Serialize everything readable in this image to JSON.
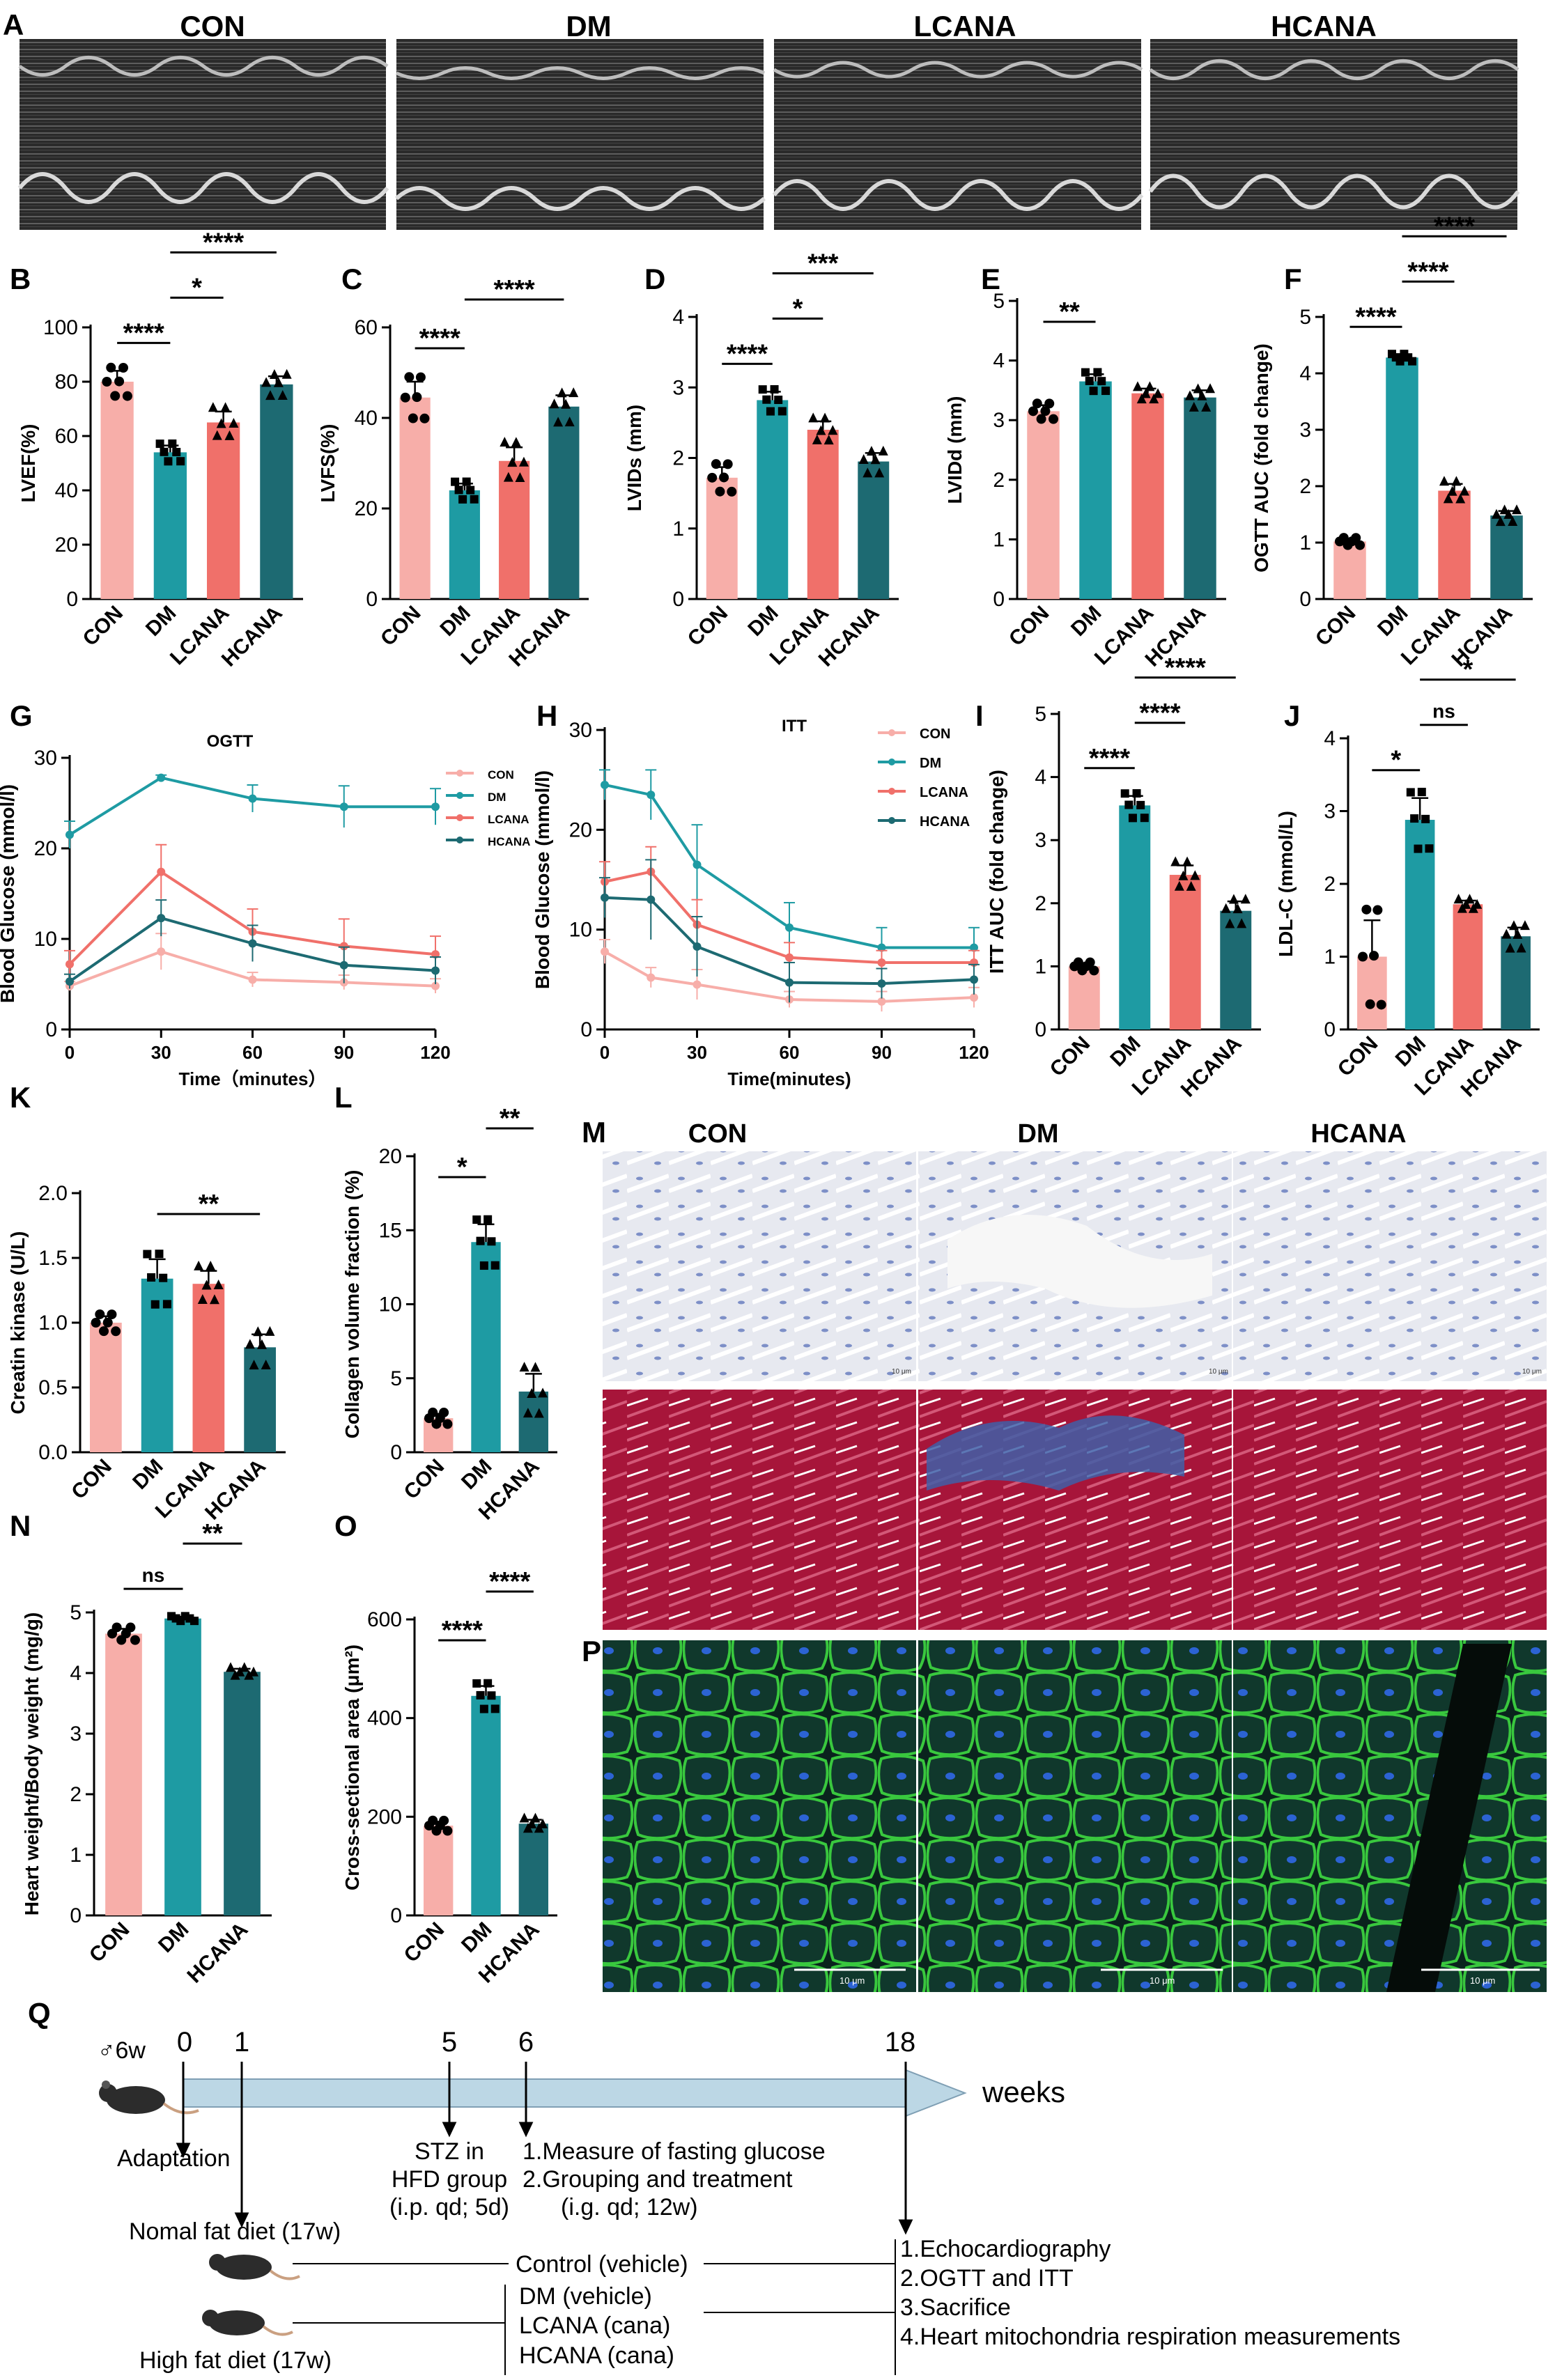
{
  "colors": {
    "con": "#f7aea9",
    "dm": "#1e9ba3",
    "lcana": "#f0706a",
    "hcana": "#1d6a72"
  },
  "panelA": {
    "letter": "A",
    "labels": [
      "CON",
      "DM",
      "LCANA",
      "HCANA"
    ]
  },
  "chart_data": [
    {
      "id": "B",
      "type": "bar",
      "categories": [
        "CON",
        "DM",
        "LCANA",
        "HCANA"
      ],
      "values": [
        80,
        54,
        65,
        79
      ],
      "errors": [
        4,
        2.5,
        4,
        3
      ],
      "ylabel": "LVEF(%)",
      "ylim": [
        0,
        100
      ],
      "yticks": [
        0,
        20,
        40,
        60,
        80,
        100
      ],
      "brackets": [
        {
          "from": 0,
          "to": 1,
          "label": "****"
        },
        {
          "from": 1,
          "to": 2,
          "label": "*"
        },
        {
          "from": 1,
          "to": 3,
          "label": "****"
        }
      ]
    },
    {
      "id": "C",
      "type": "bar",
      "categories": [
        "CON",
        "DM",
        "LCANA",
        "HCANA"
      ],
      "values": [
        44.5,
        24,
        30.5,
        42.5
      ],
      "errors": [
        3.5,
        1.5,
        3,
        2.5
      ],
      "ylabel": "LVFS(%)",
      "ylim": [
        0,
        60
      ],
      "yticks": [
        0,
        20,
        40,
        60
      ],
      "brackets": [
        {
          "from": 0,
          "to": 1,
          "label": "****"
        },
        {
          "from": 1,
          "to": 3,
          "label": "****"
        }
      ]
    },
    {
      "id": "D",
      "type": "bar",
      "categories": [
        "CON",
        "DM",
        "LCANA",
        "HCANA"
      ],
      "values": [
        1.72,
        2.82,
        2.4,
        1.95
      ],
      "errors": [
        0.15,
        0.12,
        0.12,
        0.12
      ],
      "ylabel": "LVIDs (mm)",
      "ylim": [
        0,
        4
      ],
      "yticks": [
        0,
        1,
        2,
        3,
        4
      ],
      "brackets": [
        {
          "from": 0,
          "to": 1,
          "label": "****"
        },
        {
          "from": 1,
          "to": 2,
          "label": "*"
        },
        {
          "from": 1,
          "to": 3,
          "label": "***"
        }
      ]
    },
    {
      "id": "E",
      "type": "bar",
      "categories": [
        "CON",
        "DM",
        "LCANA",
        "HCANA"
      ],
      "values": [
        3.15,
        3.65,
        3.45,
        3.38
      ],
      "errors": [
        0.1,
        0.12,
        0.08,
        0.12
      ],
      "ylabel": "LVIDd (mm)",
      "ylim": [
        0,
        5
      ],
      "yticks": [
        0,
        1,
        2,
        3,
        4,
        5
      ],
      "brackets": [
        {
          "from": 0,
          "to": 1,
          "label": "**"
        }
      ]
    },
    {
      "id": "F",
      "type": "bar",
      "categories": [
        "CON",
        "DM",
        "LCANA",
        "HCANA"
      ],
      "values": [
        1.02,
        4.28,
        1.92,
        1.48
      ],
      "errors": [
        0.05,
        0.05,
        0.12,
        0.08
      ],
      "ylabel": "OGTT AUC (fold change)",
      "ylim": [
        0,
        5
      ],
      "yticks": [
        0,
        1,
        2,
        3,
        4,
        5
      ],
      "brackets": [
        {
          "from": 0,
          "to": 1,
          "label": "****"
        },
        {
          "from": 1,
          "to": 2,
          "label": "****"
        },
        {
          "from": 1,
          "to": 3,
          "label": "****"
        }
      ]
    },
    {
      "id": "G",
      "type": "line",
      "title": "OGTT",
      "x": [
        0,
        30,
        60,
        90,
        120
      ],
      "xlabel": "Time（minutes）",
      "ylabel": "Blood Glucose (mmol/l)",
      "xlim": [
        0,
        120
      ],
      "ylim": [
        0,
        30
      ],
      "xticks": [
        0,
        30,
        60,
        90,
        120
      ],
      "yticks": [
        0,
        10,
        20,
        30
      ],
      "series": [
        {
          "name": "CON",
          "values": [
            4.8,
            8.6,
            5.5,
            5.2,
            4.8
          ],
          "errors": [
            0.5,
            2,
            0.8,
            0.8,
            0.8
          ]
        },
        {
          "name": "DM",
          "values": [
            21.5,
            27.8,
            25.5,
            24.6,
            24.6
          ],
          "errors": [
            1.5,
            0.3,
            1.5,
            2.3,
            2
          ]
        },
        {
          "name": "LCANA",
          "values": [
            7.2,
            17.4,
            10.8,
            9.2,
            8.3
          ],
          "errors": [
            1.5,
            3,
            2.5,
            3,
            2
          ]
        },
        {
          "name": "HCANA",
          "values": [
            5.3,
            12.3,
            9.5,
            7.1,
            6.5
          ],
          "errors": [
            0.8,
            2,
            2,
            2,
            1.5
          ]
        }
      ]
    },
    {
      "id": "H",
      "type": "line",
      "title": "ITT",
      "x": [
        0,
        15,
        30,
        60,
        90,
        120
      ],
      "xlabel": "Time(minutes)",
      "ylabel": "Blood Glucose (mmol/l)",
      "xlim": [
        0,
        120
      ],
      "ylim": [
        0,
        30
      ],
      "xticks": [
        0,
        30,
        60,
        90,
        120
      ],
      "yticks": [
        0,
        10,
        20,
        30
      ],
      "series": [
        {
          "name": "CON",
          "values": [
            7.8,
            5.2,
            4.5,
            3,
            2.8,
            3.2
          ],
          "errors": [
            1.2,
            1,
            1.5,
            0.8,
            1,
            1
          ]
        },
        {
          "name": "DM",
          "values": [
            24.5,
            23.5,
            16.5,
            10.2,
            8.2,
            8.2
          ],
          "errors": [
            1.5,
            2.5,
            4,
            2.5,
            2,
            2
          ]
        },
        {
          "name": "LCANA",
          "values": [
            14.8,
            15.8,
            10.5,
            7.2,
            6.7,
            6.7
          ],
          "errors": [
            2,
            2.5,
            2.5,
            1.5,
            1.2,
            1.2
          ]
        },
        {
          "name": "HCANA",
          "values": [
            13.2,
            13,
            8.3,
            4.7,
            4.6,
            5
          ],
          "errors": [
            2,
            4,
            3,
            2,
            1.5,
            1.5
          ]
        }
      ]
    },
    {
      "id": "I",
      "type": "bar",
      "categories": [
        "CON",
        "DM",
        "LCANA",
        "HCANA"
      ],
      "values": [
        1.0,
        3.55,
        2.45,
        1.88
      ],
      "errors": [
        0.05,
        0.15,
        0.15,
        0.15
      ],
      "ylabel": "ITT AUC (fold change)",
      "ylim": [
        0,
        5
      ],
      "yticks": [
        0,
        1,
        2,
        3,
        4,
        5
      ],
      "brackets": [
        {
          "from": 0,
          "to": 1,
          "label": "****"
        },
        {
          "from": 1,
          "to": 2,
          "label": "****"
        },
        {
          "from": 1,
          "to": 3,
          "label": "****"
        }
      ]
    },
    {
      "id": "J",
      "type": "bar",
      "categories": [
        "CON",
        "DM",
        "LCANA",
        "HCANA"
      ],
      "values": [
        1.0,
        2.88,
        1.72,
        1.28
      ],
      "errors": [
        0.5,
        0.3,
        0.05,
        0.12
      ],
      "ylabel": "LDL-C (mmol/L)",
      "ylim": [
        0,
        4
      ],
      "yticks": [
        0,
        1,
        2,
        3,
        4
      ],
      "brackets": [
        {
          "from": 0,
          "to": 1,
          "label": "*"
        },
        {
          "from": 1,
          "to": 2,
          "label": "ns"
        },
        {
          "from": 1,
          "to": 3,
          "label": "*"
        }
      ]
    },
    {
      "id": "K",
      "type": "bar",
      "categories": [
        "CON",
        "DM",
        "LCANA",
        "HCANA"
      ],
      "values": [
        1.0,
        1.34,
        1.3,
        0.81
      ],
      "errors": [
        0.05,
        0.15,
        0.1,
        0.1
      ],
      "ylabel": "Creatin kinase (U/L)",
      "ylim": [
        0,
        2
      ],
      "yticks": [
        0,
        0.5,
        1.0,
        1.5,
        2.0
      ],
      "brackets": [
        {
          "from": 1,
          "to": 3,
          "label": "**"
        }
      ]
    },
    {
      "id": "L",
      "type": "bar",
      "categories": [
        "CON",
        "DM",
        "HCANA"
      ],
      "values": [
        2.3,
        14.2,
        4.1
      ],
      "errors": [
        0.3,
        1.2,
        1.2
      ],
      "ylabel": "Collagen volume fraction (%)",
      "ylim": [
        0,
        20
      ],
      "yticks": [
        0,
        5,
        10,
        15,
        20
      ],
      "brackets": [
        {
          "from": 0,
          "to": 1,
          "label": "*"
        },
        {
          "from": 1,
          "to": 2,
          "label": "**"
        }
      ]
    },
    {
      "id": "N",
      "type": "bar",
      "categories": [
        "CON",
        "DM",
        "HCANA"
      ],
      "values": [
        4.65,
        4.9,
        4.02
      ],
      "errors": [
        0.08,
        0.03,
        0.05
      ],
      "ylabel": "Heart weight/Body weight (mg/g)",
      "ylim": [
        0,
        5
      ],
      "yticks": [
        0,
        1,
        2,
        3,
        4,
        5
      ],
      "brackets": [
        {
          "from": 0,
          "to": 1,
          "label": "ns"
        },
        {
          "from": 1,
          "to": 2,
          "label": "**"
        }
      ]
    },
    {
      "id": "O",
      "type": "bar",
      "categories": [
        "CON",
        "DM",
        "HCANA"
      ],
      "values": [
        182,
        445,
        186
      ],
      "errors": [
        8,
        20,
        8
      ],
      "ylabel": "Cross-sectional area (μm²)",
      "ylim": [
        0,
        600
      ],
      "yticks": [
        0,
        200,
        400,
        600
      ],
      "brackets": [
        {
          "from": 0,
          "to": 1,
          "label": "****"
        },
        {
          "from": 1,
          "to": 2,
          "label": "****"
        }
      ]
    }
  ],
  "panelM": {
    "letter": "M",
    "labels": [
      "CON",
      "DM",
      "HCANA"
    ],
    "scale": "10 μm"
  },
  "panelP": {
    "letter": "P",
    "scale": "10 μm"
  },
  "panelQ": {
    "letter": "Q",
    "age": "♂6w",
    "weeks": "weeks",
    "ticks": [
      "0",
      "1",
      "5",
      "6",
      "18"
    ],
    "adaptation": "Adaptation",
    "stz": [
      "STZ in",
      "HFD group",
      "(i.p. qd; 5d)"
    ],
    "measure": [
      "1.Measure of fasting glucose",
      "2.Grouping and treatment",
      "(i.g. qd; 12w)"
    ],
    "normal": "Nomal fat diet (17w)",
    "high": "High fat diet (17w)",
    "control": "Control (vehicle)",
    "groups": [
      "DM (vehicle)",
      "LCANA (cana)",
      "HCANA (cana)"
    ],
    "outcomes": [
      "1.Echocardiography",
      "2.OGTT and ITT",
      "3.Sacrifice",
      "4.Heart mitochondria respiration measurements"
    ]
  }
}
